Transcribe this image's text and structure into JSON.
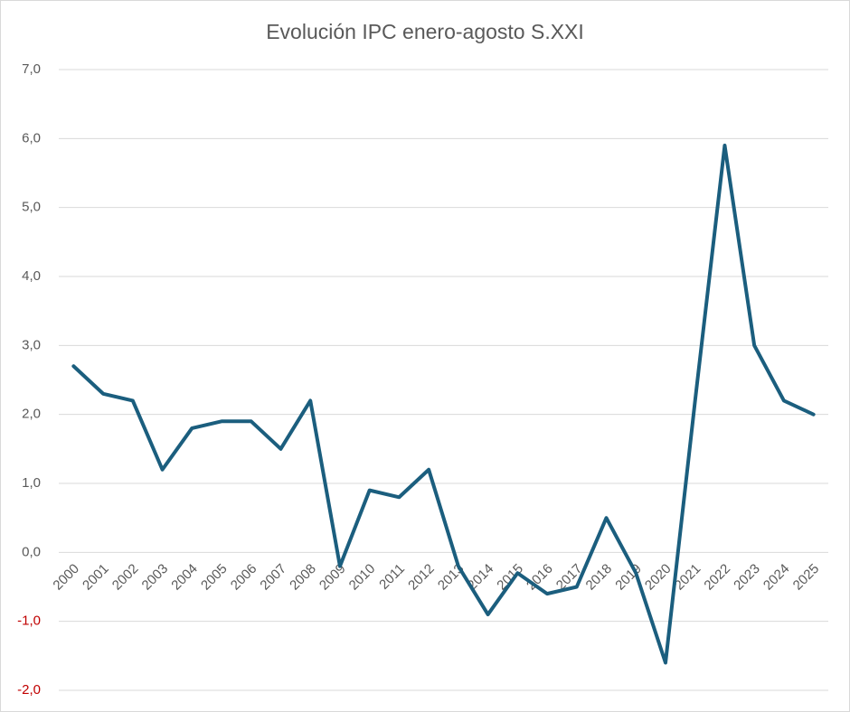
{
  "chart_data": {
    "type": "line",
    "title": "Evolución IPC enero-agosto S.XXI",
    "categories": [
      "2000",
      "2001",
      "2002",
      "2003",
      "2004",
      "2005",
      "2006",
      "2007",
      "2008",
      "2009",
      "2010",
      "2011",
      "2012",
      "2013",
      "2014",
      "2015",
      "2016",
      "2017",
      "2018",
      "2019",
      "2020",
      "2021",
      "2022",
      "2023",
      "2024",
      "2025"
    ],
    "series": [
      {
        "name": "IPC",
        "color": "#1b5e7e",
        "values": [
          2.7,
          2.3,
          2.2,
          1.2,
          1.8,
          1.9,
          1.9,
          1.5,
          2.2,
          -0.2,
          0.9,
          0.8,
          1.2,
          -0.2,
          -0.9,
          -0.3,
          -0.6,
          -0.5,
          0.5,
          -0.3,
          -1.6,
          2.2,
          5.9,
          3.0,
          2.2,
          2.0
        ]
      }
    ],
    "ylim": [
      -2,
      7
    ],
    "yticks": [
      {
        "value": -2,
        "label": "-2,0"
      },
      {
        "value": -1,
        "label": "-1,0"
      },
      {
        "value": 0,
        "label": "0,0"
      },
      {
        "value": 1,
        "label": "1,0"
      },
      {
        "value": 2,
        "label": "2,0"
      },
      {
        "value": 3,
        "label": "3,0"
      },
      {
        "value": 4,
        "label": "4,0"
      },
      {
        "value": 5,
        "label": "5,0"
      },
      {
        "value": 6,
        "label": "6,0"
      },
      {
        "value": 7,
        "label": "7,0"
      }
    ],
    "grid": true,
    "negative_tick_color": "#c00000"
  }
}
